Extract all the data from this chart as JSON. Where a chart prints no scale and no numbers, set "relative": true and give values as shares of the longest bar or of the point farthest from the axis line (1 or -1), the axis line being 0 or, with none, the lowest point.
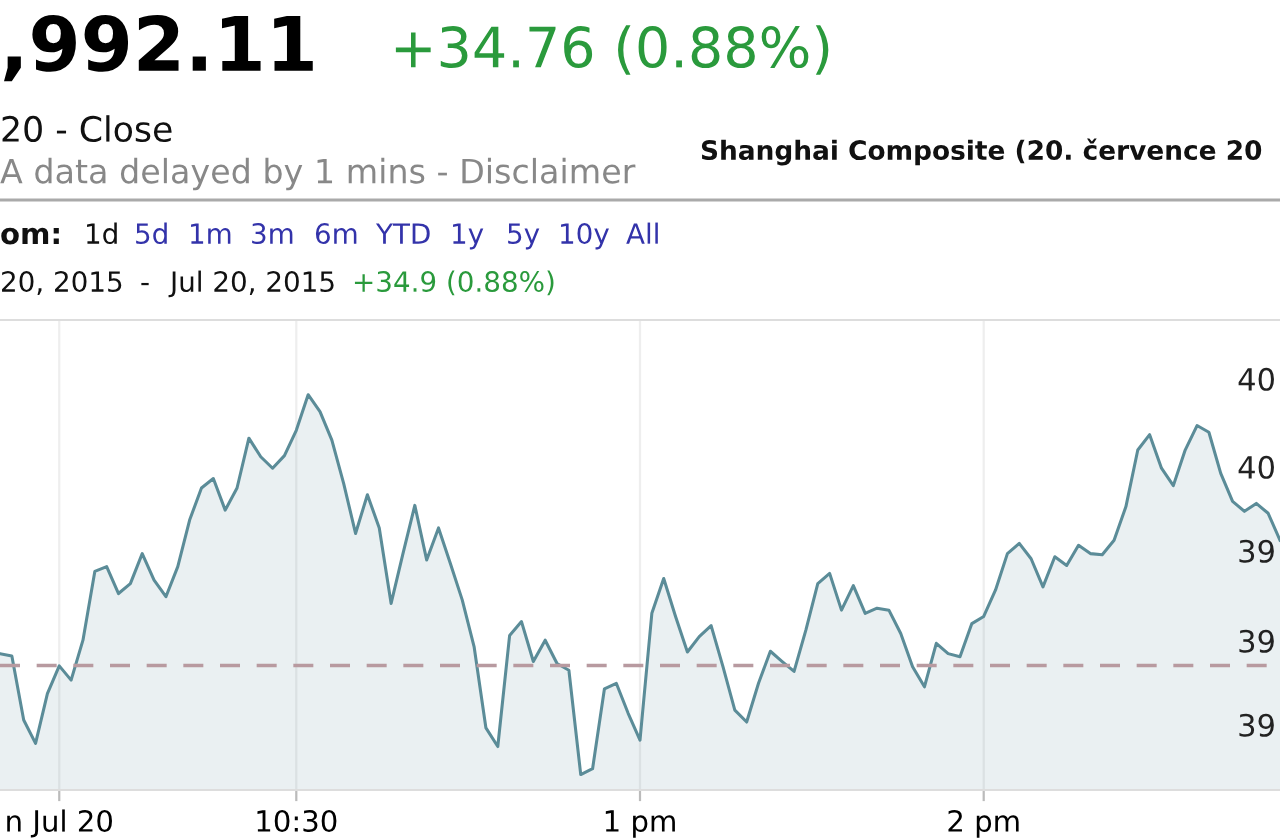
{
  "chart_data": {
    "type": "area",
    "relative": true,
    "title": ",992.11",
    "subtitle": "+34.76 (0.88%)",
    "annotations": [
      "20 - Close",
      "A data delayed by 1 mins - Disclaimer",
      "Shanghai Composite (20. července 20",
      "om:",
      "1d",
      "5d",
      "1m",
      "3m",
      "6m",
      "YTD",
      "1y",
      "5y",
      "10y",
      "All",
      "20, 2015",
      "-",
      "Jul 20, 2015",
      "+34.9 (0.88%)",
      "40",
      "40",
      "39",
      "39",
      "39"
    ],
    "categories": [
      null,
      null,
      null,
      null,
      null,
      "n Jul 20",
      null,
      null,
      null,
      null,
      null,
      null,
      null,
      null,
      null,
      null,
      null,
      null,
      null,
      null,
      null,
      null,
      null,
      null,
      null,
      "10:30",
      null,
      null,
      null,
      null,
      null,
      null,
      null,
      null,
      null,
      null,
      null,
      null,
      null,
      null,
      null,
      null,
      null,
      null,
      null,
      null,
      null,
      null,
      null,
      null,
      null,
      null,
      null,
      null,
      "1 pm",
      null,
      null,
      null,
      null,
      null,
      null,
      null,
      null,
      null,
      null,
      null,
      null,
      null,
      null,
      null,
      null,
      null,
      null,
      null,
      null,
      null,
      null,
      null,
      null,
      null,
      null,
      null,
      null,
      "2 pm",
      null,
      null,
      null,
      null,
      null,
      null,
      null,
      null,
      null,
      null,
      null,
      null,
      null,
      null,
      null,
      null,
      null,
      null,
      null,
      null,
      null,
      null,
      null,
      null,
      null
    ],
    "grid": "x",
    "ref_lines": [
      {
        "axis": "y",
        "value": 0.315,
        "color": "#b89aa0",
        "line_style": "dashed"
      }
    ],
    "series": [
      {
        "color": "#5b8c98",
        "values": [
          0.345,
          0.339,
          0.177,
          0.118,
          0.244,
          0.314,
          0.278,
          0.379,
          0.553,
          0.565,
          0.497,
          0.522,
          0.598,
          0.531,
          0.489,
          0.565,
          0.683,
          0.764,
          0.788,
          0.708,
          0.764,
          0.89,
          0.843,
          0.814,
          0.846,
          0.91,
          1.0,
          0.957,
          0.885,
          0.775,
          0.649,
          0.747,
          0.663,
          0.472,
          0.598,
          0.72,
          0.582,
          0.663,
          0.573,
          0.481,
          0.363,
          0.157,
          0.11,
          0.391,
          0.426,
          0.325,
          0.379,
          0.32,
          0.303,
          0.039,
          0.054,
          0.256,
          0.27,
          0.194,
          0.126,
          0.447,
          0.535,
          0.439,
          0.349,
          0.388,
          0.416,
          0.312,
          0.202,
          0.172,
          0.27,
          0.351,
          0.325,
          0.3,
          0.405,
          0.522,
          0.548,
          0.455,
          0.517,
          0.447,
          0.46,
          0.455,
          0.396,
          0.312,
          0.261,
          0.371,
          0.345,
          0.337,
          0.421,
          0.439,
          0.506,
          0.598,
          0.624,
          0.585,
          0.514,
          0.59,
          0.568,
          0.619,
          0.598,
          0.595,
          0.632,
          0.717,
          0.86,
          0.899,
          0.814,
          0.77,
          0.86,
          0.922,
          0.905,
          0.801,
          0.73,
          0.705,
          0.725,
          0.7,
          0.632
        ]
      }
    ]
  }
}
